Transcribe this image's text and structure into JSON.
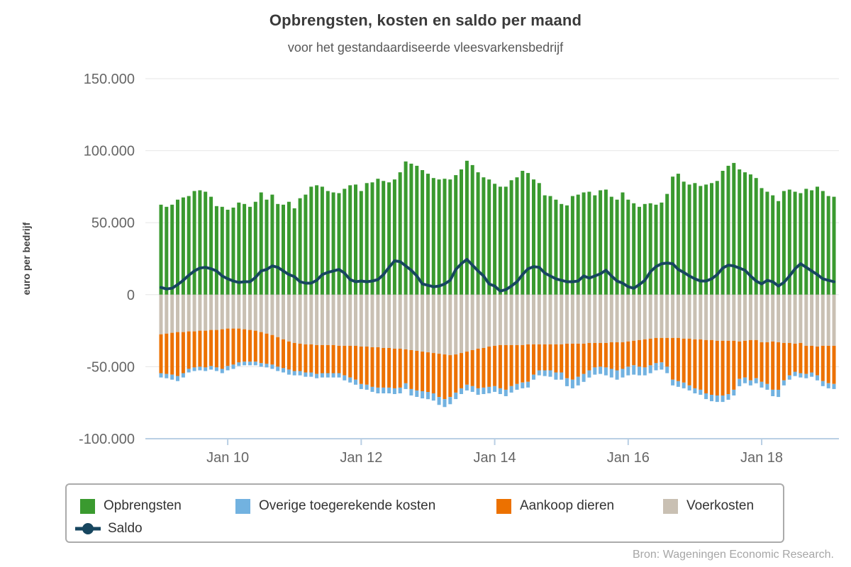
{
  "page": {
    "title": "Opbrengsten, kosten en saldo per maand",
    "subtitle": "voor het gestandaardiseerde vleesvarkensbedrijf",
    "ylabel": "euro per bedrijf",
    "source": "Bron: Wageningen Economic Research."
  },
  "colors": {
    "grid": "#e6e6e6",
    "axis": "#b9cfe4",
    "axis_text": "#666666",
    "legend_border": "#ababab",
    "legend_text": "#333333"
  },
  "chart_data": {
    "type": "bar",
    "subtype": "stacked bars with line overlay",
    "title": "Opbrengsten, kosten en saldo per maand",
    "subtitle": "voor het gestandaardiseerde vleesvarkensbedrijf",
    "ylabel": "euro per bedrijf",
    "x_unit": "month",
    "x_start": "2009-01",
    "x_end": "2019-02",
    "n_months": 122,
    "ylim": [
      -100000,
      150000
    ],
    "grid": true,
    "legend_position": "bottom",
    "x_ticks": {
      "labels": [
        "Jan 10",
        "Jan 12",
        "Jan 14",
        "Jan 16",
        "Jan 18"
      ],
      "month_indices": [
        12,
        36,
        60,
        84,
        108
      ]
    },
    "y_ticks": [
      {
        "label": "150.000",
        "value": 150000
      },
      {
        "label": "100.000",
        "value": 100000
      },
      {
        "label": "50.000",
        "value": 50000
      },
      {
        "label": "0",
        "value": 0
      },
      {
        "label": "-50.000",
        "value": -50000
      },
      {
        "label": "-100.000",
        "value": -100000
      }
    ],
    "gridline_values": [
      150000,
      100000,
      50000,
      0,
      -50000
    ],
    "series": [
      {
        "name": "Opbrengsten",
        "type": "bar",
        "stack": "positive",
        "color": "#3a9a2f",
        "values": [
          62500,
          61000,
          62500,
          66000,
          67500,
          68500,
          72000,
          72500,
          71500,
          68000,
          61500,
          61000,
          59000,
          60500,
          64000,
          63000,
          61000,
          64500,
          71000,
          66000,
          69500,
          63000,
          62500,
          64500,
          60000,
          67000,
          69500,
          75000,
          76000,
          75000,
          72000,
          71000,
          70500,
          73500,
          76000,
          76500,
          72000,
          77500,
          78000,
          80500,
          79000,
          78000,
          80000,
          85000,
          92500,
          91000,
          89500,
          86500,
          84000,
          81000,
          80000,
          80500,
          80000,
          83000,
          87000,
          93000,
          90000,
          85000,
          81500,
          80000,
          77000,
          75000,
          75000,
          79500,
          81500,
          86000,
          84500,
          80000,
          77500,
          69000,
          68500,
          66000,
          63000,
          62000,
          68500,
          69500,
          71000,
          71500,
          69000,
          72500,
          73000,
          68000,
          66000,
          71000,
          66000,
          63500,
          61000,
          63000,
          63500,
          62500,
          64000,
          70000,
          82000,
          84000,
          78500,
          76500,
          77500,
          75500,
          76500,
          77500,
          79000,
          86000,
          89500,
          91500,
          87000,
          85000,
          83500,
          81000,
          74000,
          71500,
          69000,
          65000,
          72000,
          73000,
          71500,
          70500,
          73500,
          72500,
          75000,
          72000,
          68500,
          68000
        ]
      },
      {
        "name": "Voerkosten",
        "type": "bar",
        "stack": "negative",
        "color": "#c9c0b3",
        "values": [
          -27500,
          -27000,
          -26500,
          -26000,
          -26000,
          -25500,
          -25500,
          -25000,
          -25000,
          -24500,
          -24500,
          -24000,
          -23500,
          -23500,
          -23500,
          -24000,
          -24500,
          -25000,
          -26000,
          -27000,
          -28000,
          -29500,
          -31000,
          -32500,
          -33500,
          -34000,
          -34500,
          -34500,
          -35000,
          -35000,
          -35000,
          -35000,
          -35500,
          -35500,
          -35500,
          -35500,
          -36000,
          -36000,
          -36500,
          -36500,
          -37000,
          -37000,
          -37500,
          -37500,
          -38000,
          -38500,
          -39000,
          -39500,
          -40000,
          -40500,
          -41000,
          -41500,
          -42000,
          -41500,
          -40500,
          -39500,
          -38500,
          -37500,
          -37000,
          -36000,
          -35500,
          -35000,
          -35000,
          -35000,
          -35000,
          -35000,
          -34500,
          -34500,
          -34500,
          -34500,
          -34500,
          -34500,
          -34500,
          -34000,
          -34000,
          -34000,
          -34000,
          -33500,
          -33500,
          -33500,
          -33500,
          -33000,
          -33000,
          -33000,
          -32500,
          -32000,
          -31500,
          -31000,
          -30500,
          -30000,
          -30000,
          -30000,
          -30000,
          -30000,
          -30500,
          -30500,
          -31000,
          -31000,
          -31500,
          -31500,
          -32000,
          -32000,
          -32000,
          -32000,
          -32500,
          -32000,
          -31500,
          -31500,
          -33000,
          -33000,
          -32500,
          -33000,
          -33500,
          -33500,
          -34000,
          -33500,
          -35500,
          -35500,
          -36000,
          -35500,
          -35500,
          -35500
        ]
      },
      {
        "name": "Aankoop dieren",
        "type": "bar",
        "stack": "negative",
        "color": "#ec7100",
        "values": [
          -27000,
          -28000,
          -29000,
          -30500,
          -28500,
          -26000,
          -25000,
          -25000,
          -25500,
          -25000,
          -26000,
          -27500,
          -26000,
          -25000,
          -23500,
          -22500,
          -22000,
          -21500,
          -21500,
          -21000,
          -20500,
          -20500,
          -20000,
          -19500,
          -19500,
          -19000,
          -19500,
          -19500,
          -20000,
          -19500,
          -19500,
          -19500,
          -19000,
          -20500,
          -22000,
          -23500,
          -26000,
          -26500,
          -27500,
          -28000,
          -27500,
          -27500,
          -27500,
          -27000,
          -23500,
          -27000,
          -27500,
          -27500,
          -27500,
          -28000,
          -30000,
          -31000,
          -29000,
          -26500,
          -24500,
          -23000,
          -25000,
          -27500,
          -27500,
          -28000,
          -28000,
          -30000,
          -31000,
          -28500,
          -27000,
          -26000,
          -26000,
          -21000,
          -18000,
          -18000,
          -18000,
          -19500,
          -19500,
          -24000,
          -25000,
          -23000,
          -21000,
          -19000,
          -17000,
          -16500,
          -17000,
          -18500,
          -19500,
          -18500,
          -17500,
          -17000,
          -18500,
          -19500,
          -18500,
          -17500,
          -17000,
          -20000,
          -29000,
          -30000,
          -30500,
          -32500,
          -34000,
          -35000,
          -37000,
          -38000,
          -38000,
          -38000,
          -37000,
          -34000,
          -26000,
          -25500,
          -28000,
          -26500,
          -27500,
          -29000,
          -33500,
          -33000,
          -26000,
          -22500,
          -19500,
          -21000,
          -19500,
          -18500,
          -20000,
          -24500,
          -26000,
          -26500
        ]
      },
      {
        "name": "Overige toegerekende kosten",
        "type": "bar",
        "stack": "negative",
        "color": "#72b2e0",
        "values": [
          -3000,
          -3000,
          -3500,
          -3500,
          -3000,
          -2500,
          -2500,
          -2500,
          -2500,
          -2500,
          -2500,
          -3000,
          -3000,
          -3000,
          -2500,
          -2500,
          -2500,
          -2500,
          -2500,
          -2500,
          -3000,
          -3000,
          -3000,
          -3500,
          -3000,
          -3000,
          -3000,
          -3000,
          -3000,
          -3000,
          -3000,
          -3000,
          -3000,
          -3500,
          -3500,
          -3500,
          -3500,
          -3500,
          -3500,
          -4000,
          -4000,
          -4000,
          -4000,
          -4000,
          -4000,
          -4500,
          -4500,
          -5000,
          -5000,
          -5000,
          -5500,
          -5500,
          -5000,
          -4500,
          -4000,
          -4000,
          -4000,
          -4500,
          -4500,
          -4500,
          -4000,
          -4000,
          -4500,
          -4500,
          -4000,
          -4000,
          -4000,
          -3500,
          -3500,
          -4000,
          -4500,
          -5000,
          -5000,
          -5500,
          -6000,
          -6000,
          -5500,
          -5000,
          -5000,
          -5000,
          -5500,
          -6000,
          -6500,
          -6000,
          -6000,
          -6500,
          -6000,
          -5500,
          -5500,
          -5000,
          -5000,
          -4500,
          -4000,
          -4000,
          -4000,
          -3500,
          -3500,
          -3500,
          -4000,
          -4500,
          -4500,
          -4500,
          -4000,
          -4000,
          -5000,
          -4000,
          -3500,
          -3500,
          -4000,
          -4000,
          -4500,
          -5000,
          -3500,
          -3000,
          -3000,
          -3000,
          -3000,
          -3000,
          -3500,
          -3500,
          -3500,
          -3500
        ]
      },
      {
        "name": "Saldo",
        "type": "line",
        "color": "#17465f",
        "values": [
          5000,
          4000,
          4500,
          7000,
          10000,
          13500,
          16500,
          18500,
          19000,
          18000,
          16500,
          13000,
          11000,
          9500,
          8500,
          9000,
          9000,
          12000,
          16500,
          17500,
          20000,
          19000,
          16500,
          14000,
          12500,
          9000,
          8000,
          8000,
          10000,
          14000,
          15500,
          16500,
          17500,
          15000,
          10500,
          9000,
          9500,
          9000,
          9500,
          10500,
          14000,
          19000,
          23500,
          23000,
          20000,
          17000,
          13000,
          7500,
          6500,
          5500,
          6000,
          7500,
          10000,
          17500,
          21500,
          24500,
          20500,
          16500,
          13000,
          7500,
          6000,
          2500,
          3500,
          6000,
          9000,
          14000,
          18000,
          19500,
          19000,
          15000,
          13000,
          11000,
          10000,
          9000,
          9000,
          9500,
          13000,
          11500,
          13000,
          14500,
          17000,
          13000,
          9500,
          8000,
          5500,
          4500,
          7000,
          10000,
          16000,
          19500,
          21500,
          22000,
          21500,
          17500,
          15500,
          13000,
          11000,
          9500,
          9500,
          11000,
          14000,
          18500,
          20500,
          20000,
          18500,
          17000,
          13000,
          9500,
          7500,
          10000,
          9000,
          6000,
          8500,
          13000,
          18000,
          21500,
          19000,
          16500,
          14000,
          11000,
          10000,
          9000
        ]
      }
    ]
  }
}
